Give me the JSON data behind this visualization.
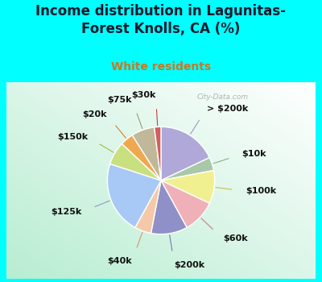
{
  "title": "Income distribution in Lagunitas-\nForest Knolls, CA (%)",
  "subtitle": "White residents",
  "bg_color": "#00FFFF",
  "labels": [
    "> $200k",
    "$10k",
    "$100k",
    "$60k",
    "$200k",
    "$40k",
    "$125k",
    "$150k",
    "$20k",
    "$75k",
    "$30k"
  ],
  "values": [
    18,
    4,
    10,
    10,
    11,
    5,
    22,
    7,
    4,
    7,
    2
  ],
  "colors": [
    "#b0a8d8",
    "#a8c8a8",
    "#f0f090",
    "#f0b0b8",
    "#9090c8",
    "#f5c8a8",
    "#a8c8f5",
    "#c8e080",
    "#f0a850",
    "#c0b898",
    "#d06060"
  ],
  "line_colors": [
    "#9898c0",
    "#88b088",
    "#c0c050",
    "#d07888",
    "#7878b0",
    "#d09868",
    "#8898d0",
    "#a0c040",
    "#d08030",
    "#a09870",
    "#c04040"
  ],
  "startangle": 90,
  "label_fs": 8,
  "title_fs": 12,
  "subtitle_fs": 10,
  "watermark": "City-Data.com"
}
